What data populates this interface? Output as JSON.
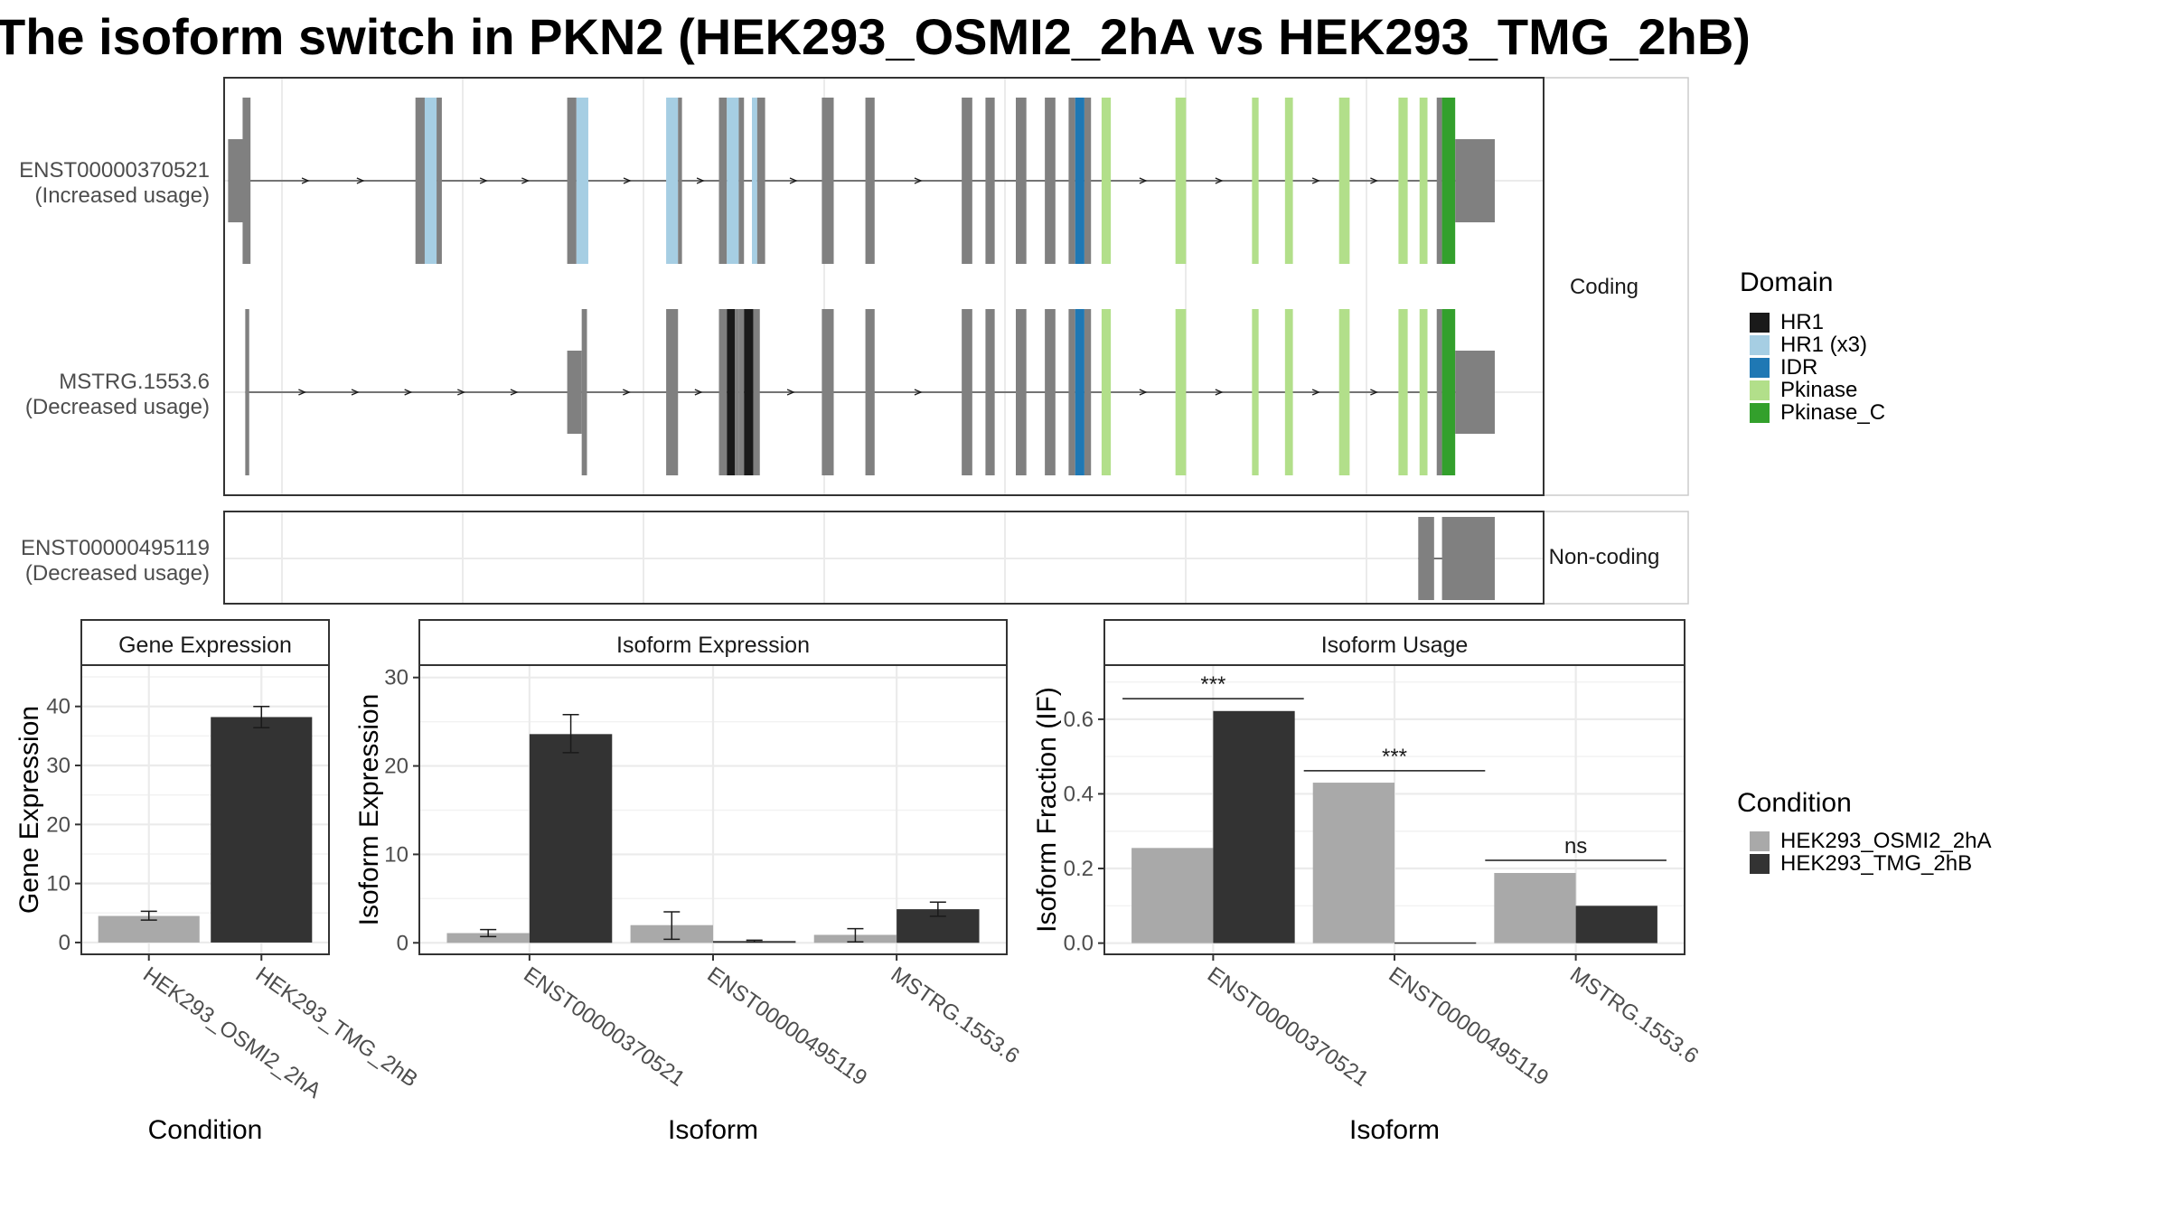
{
  "title": "The isoform switch in PKN2 (HEK293_OSMI2_2hA vs HEK293_TMG_2hB)",
  "colors": {
    "exon": "#808080",
    "HR1": "#1a1a1a",
    "HR1 (x3)": "#a6cee3",
    "IDR": "#1f78b4",
    "Pkinase": "#b2df8a",
    "Pkinase_C": "#33a02c",
    "cond_a": "#a9a9a9",
    "cond_b": "#333333"
  },
  "structure": {
    "coding_strip": "Coding",
    "noncoding_strip": "Non-coding",
    "transcripts": [
      {
        "id": "ENST00000370521",
        "usage": "(Increased usage)",
        "panel": "coding",
        "segments": [
          {
            "x": 0.3,
            "w": 1.6,
            "t": "utr"
          },
          {
            "x": 1.4,
            "w": 0.6,
            "t": "exon"
          },
          {
            "x": 14.5,
            "w": 0.8,
            "t": "exon"
          },
          {
            "x": 15.2,
            "w": 0.9,
            "t": "HR1 (x3)"
          },
          {
            "x": 16.1,
            "w": 0.4,
            "t": "exon"
          },
          {
            "x": 26.0,
            "w": 0.7,
            "t": "exon"
          },
          {
            "x": 26.7,
            "w": 0.9,
            "t": "HR1 (x3)"
          },
          {
            "x": 33.5,
            "w": 0.9,
            "t": "HR1 (x3)"
          },
          {
            "x": 34.4,
            "w": 0.3,
            "t": "exon"
          },
          {
            "x": 37.5,
            "w": 0.6,
            "t": "exon"
          },
          {
            "x": 38.1,
            "w": 0.9,
            "t": "HR1 (x3)"
          },
          {
            "x": 39.0,
            "w": 0.4,
            "t": "exon"
          },
          {
            "x": 40.0,
            "w": 0.4,
            "t": "HR1 (x3)"
          },
          {
            "x": 40.4,
            "w": 0.6,
            "t": "exon"
          },
          {
            "x": 45.3,
            "w": 0.9,
            "t": "exon"
          },
          {
            "x": 48.6,
            "w": 0.7,
            "t": "exon"
          },
          {
            "x": 55.9,
            "w": 0.8,
            "t": "exon"
          },
          {
            "x": 57.7,
            "w": 0.7,
            "t": "exon"
          },
          {
            "x": 60.0,
            "w": 0.8,
            "t": "exon"
          },
          {
            "x": 62.2,
            "w": 0.8,
            "t": "exon"
          },
          {
            "x": 64.0,
            "w": 0.5,
            "t": "exon"
          },
          {
            "x": 64.5,
            "w": 0.7,
            "t": "IDR"
          },
          {
            "x": 65.2,
            "w": 0.5,
            "t": "exon"
          },
          {
            "x": 66.5,
            "w": 0.7,
            "t": "Pkinase"
          },
          {
            "x": 72.1,
            "w": 0.8,
            "t": "Pkinase"
          },
          {
            "x": 77.9,
            "w": 0.5,
            "t": "Pkinase"
          },
          {
            "x": 80.4,
            "w": 0.6,
            "t": "Pkinase"
          },
          {
            "x": 84.5,
            "w": 0.8,
            "t": "Pkinase"
          },
          {
            "x": 89.0,
            "w": 0.7,
            "t": "Pkinase"
          },
          {
            "x": 90.6,
            "w": 0.6,
            "t": "Pkinase"
          },
          {
            "x": 91.9,
            "w": 0.4,
            "t": "exon"
          },
          {
            "x": 92.3,
            "w": 1.0,
            "t": "Pkinase_C"
          },
          {
            "x": 93.3,
            "w": 3.0,
            "t": "utr"
          }
        ]
      },
      {
        "id": "MSTRG.1553.6",
        "usage": "(Decreased usage)",
        "panel": "coding",
        "segments": [
          {
            "x": 1.6,
            "w": 0.3,
            "t": "exon"
          },
          {
            "x": 26.0,
            "w": 1.1,
            "t": "utr"
          },
          {
            "x": 27.1,
            "w": 0.4,
            "t": "exon"
          },
          {
            "x": 33.5,
            "w": 0.9,
            "t": "exon"
          },
          {
            "x": 37.5,
            "w": 0.6,
            "t": "exon"
          },
          {
            "x": 38.1,
            "w": 0.6,
            "t": "HR1"
          },
          {
            "x": 38.7,
            "w": 0.3,
            "t": "exon"
          },
          {
            "x": 39.0,
            "w": 0.4,
            "t": "exon"
          },
          {
            "x": 39.4,
            "w": 0.7,
            "t": "HR1"
          },
          {
            "x": 40.1,
            "w": 0.5,
            "t": "exon"
          },
          {
            "x": 45.3,
            "w": 0.9,
            "t": "exon"
          },
          {
            "x": 48.6,
            "w": 0.7,
            "t": "exon"
          },
          {
            "x": 55.9,
            "w": 0.8,
            "t": "exon"
          },
          {
            "x": 57.7,
            "w": 0.7,
            "t": "exon"
          },
          {
            "x": 60.0,
            "w": 0.8,
            "t": "exon"
          },
          {
            "x": 62.2,
            "w": 0.8,
            "t": "exon"
          },
          {
            "x": 64.0,
            "w": 0.5,
            "t": "exon"
          },
          {
            "x": 64.5,
            "w": 0.7,
            "t": "IDR"
          },
          {
            "x": 65.2,
            "w": 0.5,
            "t": "exon"
          },
          {
            "x": 66.5,
            "w": 0.7,
            "t": "Pkinase"
          },
          {
            "x": 72.1,
            "w": 0.8,
            "t": "Pkinase"
          },
          {
            "x": 77.9,
            "w": 0.5,
            "t": "Pkinase"
          },
          {
            "x": 80.4,
            "w": 0.6,
            "t": "Pkinase"
          },
          {
            "x": 84.5,
            "w": 0.8,
            "t": "Pkinase"
          },
          {
            "x": 89.0,
            "w": 0.7,
            "t": "Pkinase"
          },
          {
            "x": 90.6,
            "w": 0.6,
            "t": "Pkinase"
          },
          {
            "x": 91.9,
            "w": 0.4,
            "t": "exon"
          },
          {
            "x": 92.3,
            "w": 1.0,
            "t": "Pkinase_C"
          },
          {
            "x": 93.3,
            "w": 3.0,
            "t": "utr"
          }
        ]
      },
      {
        "id": "ENST00000495119",
        "usage": "(Decreased usage)",
        "panel": "noncoding",
        "segments": [
          {
            "x": 90.5,
            "w": 1.2,
            "t": "utr"
          },
          {
            "x": 92.3,
            "w": 4.0,
            "t": "utr"
          }
        ]
      }
    ]
  },
  "legend_domain": {
    "title": "Domain",
    "items": [
      "HR1",
      "HR1 (x3)",
      "IDR",
      "Pkinase",
      "Pkinase_C"
    ]
  },
  "legend_condition": {
    "title": "Condition",
    "items": [
      "HEK293_OSMI2_2hA",
      "HEK293_TMG_2hB"
    ]
  },
  "chart_data": [
    {
      "type": "bar",
      "title": "Gene Expression",
      "xlabel": "Condition",
      "ylabel": "Gene Expression",
      "ylim": [
        -2,
        47
      ],
      "yticks": [
        0,
        10,
        20,
        30,
        40
      ],
      "categories": [
        "HEK293_OSMI2_2hA",
        "HEK293_TMG_2hB"
      ],
      "values": [
        4.5,
        38.2
      ],
      "errors": [
        [
          3.8,
          5.3
        ],
        [
          36.4,
          40.0
        ]
      ],
      "significance": []
    },
    {
      "type": "bar",
      "title": "Isoform Expression",
      "xlabel": "Isoform",
      "ylabel": "Isoform Expression",
      "ylim": [
        -1.3,
        31.4
      ],
      "yticks": [
        0,
        10,
        20,
        30
      ],
      "categories": [
        "ENST00000370521",
        "ENST00000495119",
        "MSTRG.1553.6"
      ],
      "series": [
        {
          "name": "HEK293_OSMI2_2hA",
          "values": [
            1.1,
            2.0,
            0.9
          ],
          "errors": [
            [
              0.7,
              1.5
            ],
            [
              0.4,
              3.5
            ],
            [
              0.1,
              1.6
            ]
          ]
        },
        {
          "name": "HEK293_TMG_2hB",
          "values": [
            23.6,
            0.2,
            3.8
          ],
          "errors": [
            [
              21.5,
              25.8
            ],
            [
              0.1,
              0.3
            ],
            [
              3.0,
              4.6
            ]
          ]
        }
      ],
      "significance": []
    },
    {
      "type": "bar",
      "title": "Isoform Usage",
      "xlabel": "Isoform",
      "ylabel": "Isoform Fraction (IF)",
      "ylim": [
        -0.03,
        0.745
      ],
      "yticks": [
        0.0,
        0.2,
        0.4,
        0.6
      ],
      "tick_labels": [
        "0.0",
        "0.2",
        "0.4",
        "0.6"
      ],
      "categories": [
        "ENST00000370521",
        "ENST00000495119",
        "MSTRG.1553.6"
      ],
      "series": [
        {
          "name": "HEK293_OSMI2_2hA",
          "values": [
            0.255,
            0.43,
            0.188
          ]
        },
        {
          "name": "HEK293_TMG_2hB",
          "values": [
            0.622,
            0.002,
            0.1
          ]
        }
      ],
      "significance": [
        {
          "category": 0,
          "label": "***",
          "y": 0.655
        },
        {
          "category": 1,
          "label": "***",
          "y": 0.462
        },
        {
          "category": 2,
          "label": "ns",
          "y": 0.222
        }
      ]
    }
  ]
}
